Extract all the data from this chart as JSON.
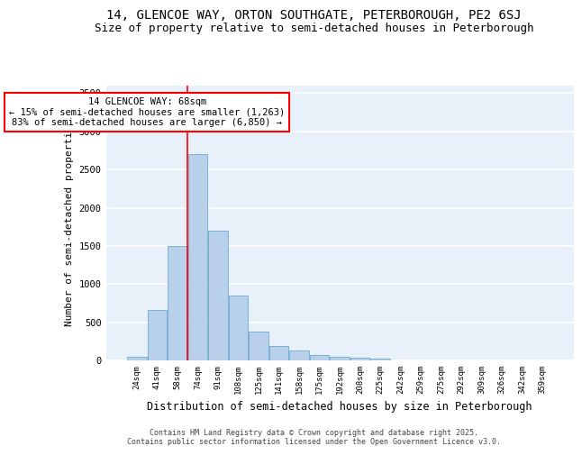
{
  "title": "14, GLENCOE WAY, ORTON SOUTHGATE, PETERBOROUGH, PE2 6SJ",
  "subtitle": "Size of property relative to semi-detached houses in Peterborough",
  "xlabel": "Distribution of semi-detached houses by size in Peterborough",
  "ylabel": "Number of semi-detached properties",
  "categories": [
    "24sqm",
    "41sqm",
    "58sqm",
    "74sqm",
    "91sqm",
    "108sqm",
    "125sqm",
    "141sqm",
    "158sqm",
    "175sqm",
    "192sqm",
    "208sqm",
    "225sqm",
    "242sqm",
    "259sqm",
    "275sqm",
    "292sqm",
    "309sqm",
    "326sqm",
    "342sqm",
    "359sqm"
  ],
  "values": [
    50,
    660,
    1500,
    2700,
    1700,
    850,
    380,
    190,
    130,
    65,
    45,
    30,
    20,
    5,
    5,
    2,
    1,
    0,
    0,
    0,
    0
  ],
  "bar_color": "#b8d0ea",
  "bar_edge_color": "#6aaad4",
  "background_color": "#e8f0fa",
  "grid_color": "#ffffff",
  "vline_x": 2.5,
  "vline_color": "red",
  "annotation_text": "14 GLENCOE WAY: 68sqm\n← 15% of semi-detached houses are smaller (1,263)\n83% of semi-detached houses are larger (6,850) →",
  "annotation_box_color": "red",
  "ylim": [
    0,
    3600
  ],
  "yticks": [
    0,
    500,
    1000,
    1500,
    2000,
    2500,
    3000,
    3500
  ],
  "footer": "Contains HM Land Registry data © Crown copyright and database right 2025.\nContains public sector information licensed under the Open Government Licence v3.0.",
  "title_fontsize": 10,
  "subtitle_fontsize": 9,
  "xlabel_fontsize": 8.5,
  "ylabel_fontsize": 8
}
